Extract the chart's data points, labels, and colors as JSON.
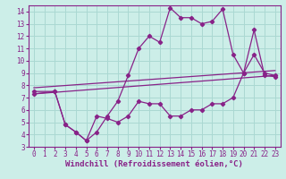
{
  "xlabel": "Windchill (Refroidissement éolien,°C)",
  "bg_color": "#cceee8",
  "grid_color": "#aad8d2",
  "line_color": "#882288",
  "xlim": [
    -0.5,
    23.5
  ],
  "ylim": [
    3,
    14.5
  ],
  "xticks": [
    0,
    1,
    2,
    3,
    4,
    5,
    6,
    7,
    8,
    9,
    10,
    11,
    12,
    13,
    14,
    15,
    16,
    17,
    18,
    19,
    20,
    21,
    22,
    23
  ],
  "yticks": [
    3,
    4,
    5,
    6,
    7,
    8,
    9,
    10,
    11,
    12,
    13,
    14
  ],
  "upper_zigzag_x": [
    0,
    2,
    3,
    4,
    5,
    6,
    7,
    8,
    9,
    10,
    11,
    12,
    13,
    14,
    15,
    16,
    17,
    18,
    19,
    20,
    21,
    22,
    23
  ],
  "upper_zigzag_y": [
    7.5,
    7.5,
    4.8,
    4.2,
    3.5,
    4.2,
    5.5,
    6.7,
    8.8,
    11.0,
    12.0,
    11.5,
    14.3,
    13.5,
    13.5,
    13.0,
    13.2,
    14.2,
    10.5,
    9.0,
    12.5,
    8.8,
    8.7
  ],
  "lower_zigzag_x": [
    0,
    2,
    3,
    4,
    5,
    6,
    7,
    8,
    9,
    10,
    11,
    12,
    13,
    14,
    15,
    16,
    17,
    18,
    19,
    20,
    21,
    22,
    23
  ],
  "lower_zigzag_y": [
    7.3,
    7.5,
    4.8,
    4.2,
    3.5,
    5.5,
    5.3,
    5.0,
    5.5,
    6.7,
    6.5,
    6.5,
    5.5,
    5.5,
    6.0,
    6.0,
    6.5,
    6.5,
    7.0,
    9.0,
    10.5,
    9.0,
    8.8
  ],
  "trend1_x": [
    0,
    23
  ],
  "trend1_y": [
    7.3,
    8.8
  ],
  "trend2_x": [
    0,
    23
  ],
  "trend2_y": [
    7.8,
    9.2
  ],
  "tick_fontsize": 5.5,
  "xlabel_fontsize": 6.5
}
